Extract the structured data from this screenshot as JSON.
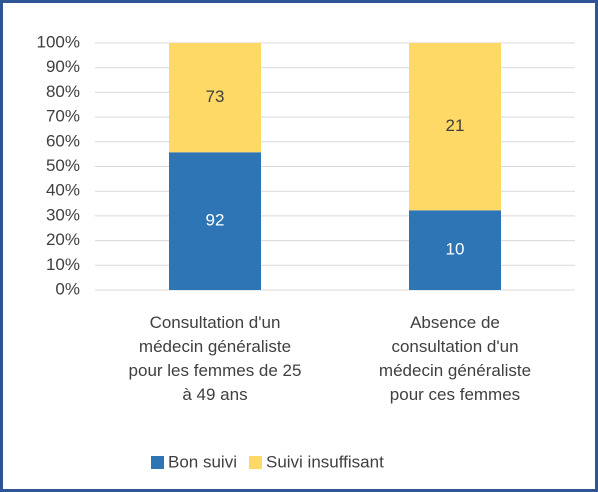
{
  "chart_data": {
    "type": "stacked_percent",
    "categories": [
      "Consultation d'un\nmédecin généraliste\npour les femmes de 25\nà 49 ans",
      "Absence de\nconsultation d'un\nmédecin généraliste\npour ces femmes"
    ],
    "series": [
      {
        "name": "Bon suivi",
        "color": "#2e75b6",
        "values": [
          92,
          10
        ]
      },
      {
        "name": "Suivi insuffisant",
        "color": "#ffd966",
        "values": [
          73,
          21
        ]
      }
    ],
    "ylim": [
      0,
      100
    ],
    "yticks": [
      {
        "value": 0,
        "label": "0%"
      },
      {
        "value": 10,
        "label": "10%"
      },
      {
        "value": 20,
        "label": "20%"
      },
      {
        "value": 30,
        "label": "30%"
      },
      {
        "value": 40,
        "label": "40%"
      },
      {
        "value": 50,
        "label": "50%"
      },
      {
        "value": 60,
        "label": "60%"
      },
      {
        "value": 70,
        "label": "70%"
      },
      {
        "value": 80,
        "label": "80%"
      },
      {
        "value": 90,
        "label": "90%"
      },
      {
        "value": 100,
        "label": "100%"
      }
    ],
    "grid": true,
    "legend": "bottom"
  }
}
